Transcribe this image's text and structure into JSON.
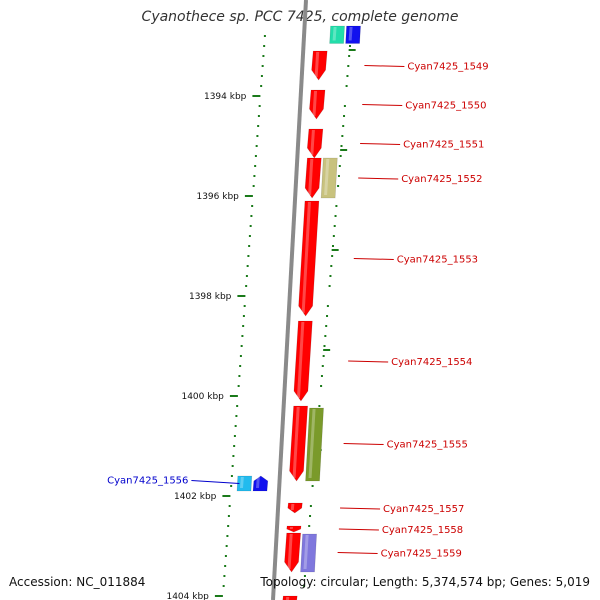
{
  "title": "Cyanothece sp. PCC 7425, complete genome",
  "footer": {
    "accession": "Accession: NC_011884",
    "summary": "Topology: circular; Length: 5,374,574 bp; Genes: 5,019"
  },
  "colors": {
    "backbone": "#8a8a8a",
    "tick": "#1a7a1a",
    "forward_gene": "#ff0000",
    "label_forward": "#cc0000",
    "label_reverse": "#0000cc",
    "label_line_forward": "#cc0000",
    "label_line_reverse": "#0000cc"
  },
  "axis": {
    "start_kbp": 1393,
    "end_kbp": 1405,
    "major_ticks": [
      {
        "kbp": 1394,
        "label": "1394 kbp"
      },
      {
        "kbp": 1396,
        "label": "1396 kbp"
      },
      {
        "kbp": 1398,
        "label": "1398 kbp"
      },
      {
        "kbp": 1400,
        "label": "1400 kbp"
      },
      {
        "kbp": 1402,
        "label": "1402 kbp"
      },
      {
        "kbp": 1404,
        "label": "1404 kbp"
      }
    ]
  },
  "genes": [
    {
      "label": "",
      "strand": "+",
      "start_kbp": 1392.6,
      "end_kbp": 1392.95,
      "lane": 2,
      "color": "#22ddaa"
    },
    {
      "label": "",
      "strand": "+",
      "start_kbp": 1392.6,
      "end_kbp": 1392.95,
      "lane": 3,
      "color": "#1111ee"
    },
    {
      "label": "Cyan7425_1549",
      "strand": "+",
      "start_kbp": 1393.1,
      "end_kbp": 1393.68,
      "lane": 1,
      "color": "#ff0000"
    },
    {
      "label": "Cyan7425_1550",
      "strand": "+",
      "start_kbp": 1393.88,
      "end_kbp": 1394.46,
      "lane": 1,
      "color": "#ff0000"
    },
    {
      "label": "Cyan7425_1551",
      "strand": "+",
      "start_kbp": 1394.66,
      "end_kbp": 1395.24,
      "lane": 1,
      "color": "#ff0000"
    },
    {
      "label": "Cyan7425_1552",
      "strand": "+",
      "start_kbp": 1395.24,
      "end_kbp": 1396.04,
      "lane": 1,
      "color": "#ff0000"
    },
    {
      "label": "",
      "strand": "+",
      "start_kbp": 1395.24,
      "end_kbp": 1396.04,
      "lane": 2,
      "color": "#c8c27e"
    },
    {
      "label": "Cyan7425_1553",
      "strand": "+",
      "start_kbp": 1396.1,
      "end_kbp": 1398.4,
      "lane": 1,
      "color": "#ff0000"
    },
    {
      "label": "Cyan7425_1554",
      "strand": "+",
      "start_kbp": 1398.5,
      "end_kbp": 1400.1,
      "lane": 1,
      "color": "#ff0000"
    },
    {
      "label": "Cyan7425_1555",
      "strand": "+",
      "start_kbp": 1400.2,
      "end_kbp": 1401.7,
      "lane": 1,
      "color": "#ff0000"
    },
    {
      "label": "",
      "strand": "+",
      "start_kbp": 1400.24,
      "end_kbp": 1401.7,
      "lane": 2,
      "color": "#7a9a2a"
    },
    {
      "label": "Cyan7425_1556",
      "strand": "-",
      "start_kbp": 1401.6,
      "end_kbp": 1401.9,
      "lane": -1,
      "color": "#1111ee"
    },
    {
      "label": "",
      "strand": "-",
      "start_kbp": 1401.6,
      "end_kbp": 1401.9,
      "lane": -2,
      "color": "#22bbee"
    },
    {
      "label": "Cyan7425_1557",
      "strand": "+",
      "start_kbp": 1402.14,
      "end_kbp": 1402.34,
      "lane": 1,
      "color": "#ff0000"
    },
    {
      "label": "Cyan7425_1558",
      "strand": "+",
      "start_kbp": 1402.6,
      "end_kbp": 1402.72,
      "lane": 1,
      "color": "#ff0000"
    },
    {
      "label": "Cyan7425_1559",
      "strand": "+",
      "start_kbp": 1402.74,
      "end_kbp": 1403.52,
      "lane": 1,
      "color": "#ff0000"
    },
    {
      "label": "",
      "strand": "+",
      "start_kbp": 1402.76,
      "end_kbp": 1403.52,
      "lane": 2,
      "color": "#7f77dd"
    },
    {
      "label": "",
      "strand": "+",
      "start_kbp": 1404.0,
      "end_kbp": 1404.3,
      "lane": 1,
      "color": "#ff0000"
    }
  ]
}
